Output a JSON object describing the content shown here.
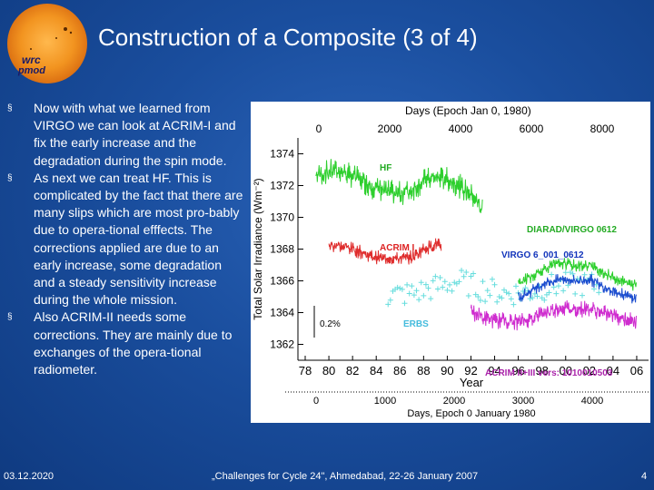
{
  "slide": {
    "title": "Construction of a Composite (3 of 4)",
    "logo_text": [
      "pmod",
      "wrc"
    ],
    "bullets": [
      "Now with what we learned from VIRGO we can look at ACRIM-I and fix the early increase and the degradation during the spin mode.",
      "As next we can treat HF. This is complicated by the fact that there are many slips which are most pro-bably due to opera-tional efffects. The corrections applied are due to an early increase, some degradation and a steady sensitivity increase during the whole mission.",
      "Also ACRIM-II needs some corrections. They are mainly due to exchanges of the opera-tional radiometer."
    ],
    "bullet_marker": "§",
    "footer": {
      "date": "03.12.2020",
      "event": "„Challenges for Cycle 24\", Ahmedabad, 22-26 January 2007",
      "page": "4"
    }
  },
  "chart_data": {
    "type": "line",
    "title": "",
    "top_axis_label": "Days (Epoch Jan 0, 1980)",
    "top_axis_ticks": [
      "0",
      "2000",
      "4000",
      "6000",
      "8000"
    ],
    "xlabel": "Year",
    "x_ticks": [
      "78",
      "80",
      "82",
      "84",
      "86",
      "88",
      "90",
      "92",
      "94",
      "96",
      "98",
      "00",
      "02",
      "04",
      "06"
    ],
    "ylabel": "Total Solar Irradiance (Wm⁻²)",
    "y_ticks": [
      "1374",
      "1372",
      "1370",
      "1368",
      "1366",
      "1364",
      "1362"
    ],
    "ylim": [
      1361,
      1375
    ],
    "xlim": [
      1978,
      2007
    ],
    "bottom_axis_label": "Days, Epoch 0 January 1980",
    "bottom_axis_ticks": [
      "0",
      "1000",
      "2000",
      "3000",
      "4000"
    ],
    "scale_bar_label": "0.2%",
    "colors": {
      "HF": "#22cc22",
      "ACRIM I": "#dd2222",
      "ERBS": "#66dddd",
      "ACRIM II+III": "#cc22cc",
      "VIRGO": "#1144cc",
      "DIARAD/VIRGO": "#22cc22"
    },
    "series_labels": [
      "HF",
      "ACRIM I",
      "ERBS",
      "DIARAD/VIRGO 0612",
      "VIRGO 6_001_0612",
      "ACRIM II+III vers: 1010010503"
    ],
    "series": [
      {
        "name": "HF",
        "x": [
          1978.9,
          1980,
          1981,
          1982,
          1983,
          1984,
          1985,
          1986,
          1987,
          1988,
          1989,
          1990,
          1991,
          1992,
          1993
        ],
        "values": [
          1372.6,
          1372.9,
          1372.9,
          1372.6,
          1372.2,
          1371.8,
          1371.6,
          1371.5,
          1371.7,
          1372.3,
          1372.5,
          1372.4,
          1372.0,
          1371.4,
          1370.5
        ]
      },
      {
        "name": "ACRIM I",
        "x": [
          1980,
          1981,
          1982,
          1983,
          1984,
          1985,
          1986,
          1987,
          1988,
          1989,
          1989.5
        ],
        "values": [
          1368.2,
          1368.2,
          1368.0,
          1367.7,
          1367.5,
          1367.4,
          1367.4,
          1367.5,
          1368.0,
          1368.3,
          1368.2
        ]
      },
      {
        "name": "ERBS",
        "x": [
          1985,
          1987,
          1989,
          1991,
          1993,
          1995,
          1997,
          1999,
          2001,
          2003
        ],
        "values": [
          1365.1,
          1365.2,
          1365.6,
          1366.0,
          1365.5,
          1365.2,
          1365.3,
          1365.7,
          1365.8,
          1365.7
        ]
      },
      {
        "name": "ACRIM II+III",
        "x": [
          1992,
          1993,
          1994,
          1995,
          1996,
          1997,
          1998,
          1999,
          2000,
          2001,
          2002,
          2003,
          2004,
          2005,
          2006
        ],
        "values": [
          1364.1,
          1363.7,
          1363.5,
          1363.5,
          1363.4,
          1363.6,
          1364.0,
          1364.2,
          1364.3,
          1364.2,
          1364.3,
          1364.0,
          1363.8,
          1363.6,
          1363.4
        ]
      },
      {
        "name": "VIRGO",
        "x": [
          1996,
          1997,
          1998,
          1999,
          2000,
          2001,
          2002,
          2003,
          2004,
          2005,
          2006
        ],
        "values": [
          1365.0,
          1365.3,
          1365.8,
          1366.0,
          1366.1,
          1366.0,
          1366.1,
          1365.7,
          1365.4,
          1365.1,
          1364.9
        ]
      },
      {
        "name": "DIARAD/VIRGO",
        "x": [
          1996,
          1997,
          1998,
          1999,
          2000,
          2001,
          2002,
          2003,
          2004,
          2005,
          2006
        ],
        "values": [
          1365.9,
          1366.2,
          1366.7,
          1367.0,
          1367.1,
          1366.9,
          1367.0,
          1366.6,
          1366.2,
          1365.9,
          1365.7
        ]
      }
    ]
  }
}
